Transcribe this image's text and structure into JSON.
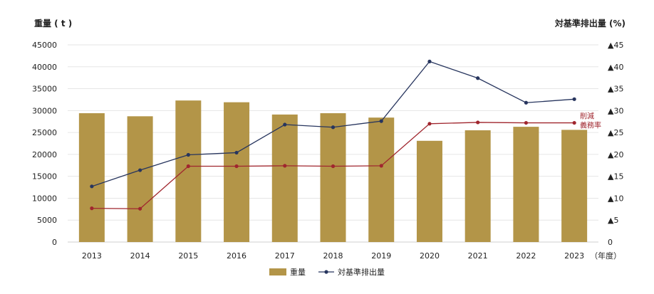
{
  "chart_data": {
    "type": "bar",
    "categories": [
      "2013",
      "2014",
      "2015",
      "2016",
      "2017",
      "2018",
      "2019",
      "2020",
      "2021",
      "2022",
      "2023"
    ],
    "x_unit": "（年度）",
    "ylabel_left": "重量 ( t )",
    "ylabel_right": "対基準排出量 (%)",
    "ylim_left": [
      0,
      45000
    ],
    "yticks_left": [
      "0",
      "5000",
      "10000",
      "15000",
      "20000",
      "25000",
      "30000",
      "35000",
      "40000",
      "45000"
    ],
    "ylim_right": [
      0,
      45
    ],
    "yticks_right": [
      "0",
      "▲5",
      "▲10",
      "▲15",
      "▲20",
      "▲25",
      "▲30",
      "▲35",
      "▲40",
      "▲45"
    ],
    "grid": true,
    "legend_placement": "bottom-center",
    "series": [
      {
        "name": "重量",
        "type": "bar",
        "axis": "left",
        "color": "#b39548",
        "values": [
          29400,
          28700,
          32300,
          31900,
          29100,
          29400,
          28400,
          23100,
          25500,
          26300,
          25600
        ]
      },
      {
        "name": "対基準排出量",
        "type": "line",
        "axis": "right",
        "color": "#27355e",
        "values": [
          12.7,
          16.4,
          19.9,
          20.4,
          26.8,
          26.2,
          27.6,
          41.2,
          37.4,
          31.8,
          32.6
        ]
      },
      {
        "name": "削減義務率",
        "type": "line",
        "axis": "right",
        "color": "#a0262e",
        "values": [
          7.7,
          7.6,
          17.3,
          17.3,
          17.4,
          17.3,
          17.4,
          27.0,
          27.3,
          27.2,
          27.2
        ]
      }
    ],
    "annotation": {
      "lines": [
        "削減",
        "義務率"
      ],
      "color": "#a0262e"
    }
  }
}
